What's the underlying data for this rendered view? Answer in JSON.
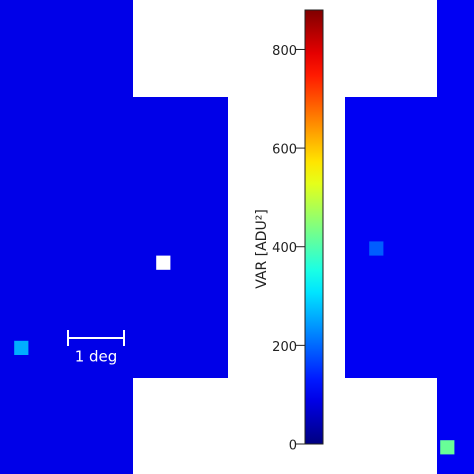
{
  "chart_data": {
    "type": "heatmap",
    "colorbar_label": "VAR [ADU²]",
    "clim": [
      0,
      880
    ],
    "cticks": [
      0,
      200,
      400,
      600,
      800
    ],
    "colormap": "jet",
    "annotation": "1 deg",
    "background_values": [
      90,
      100
    ],
    "cells": [
      {
        "col": 1,
        "row": 24,
        "value": 260
      },
      {
        "col": 26,
        "row": 17,
        "value": 190
      },
      {
        "col": 31,
        "row": 31,
        "value": 420
      },
      {
        "col": 11,
        "row": 18,
        "value": null
      }
    ]
  }
}
